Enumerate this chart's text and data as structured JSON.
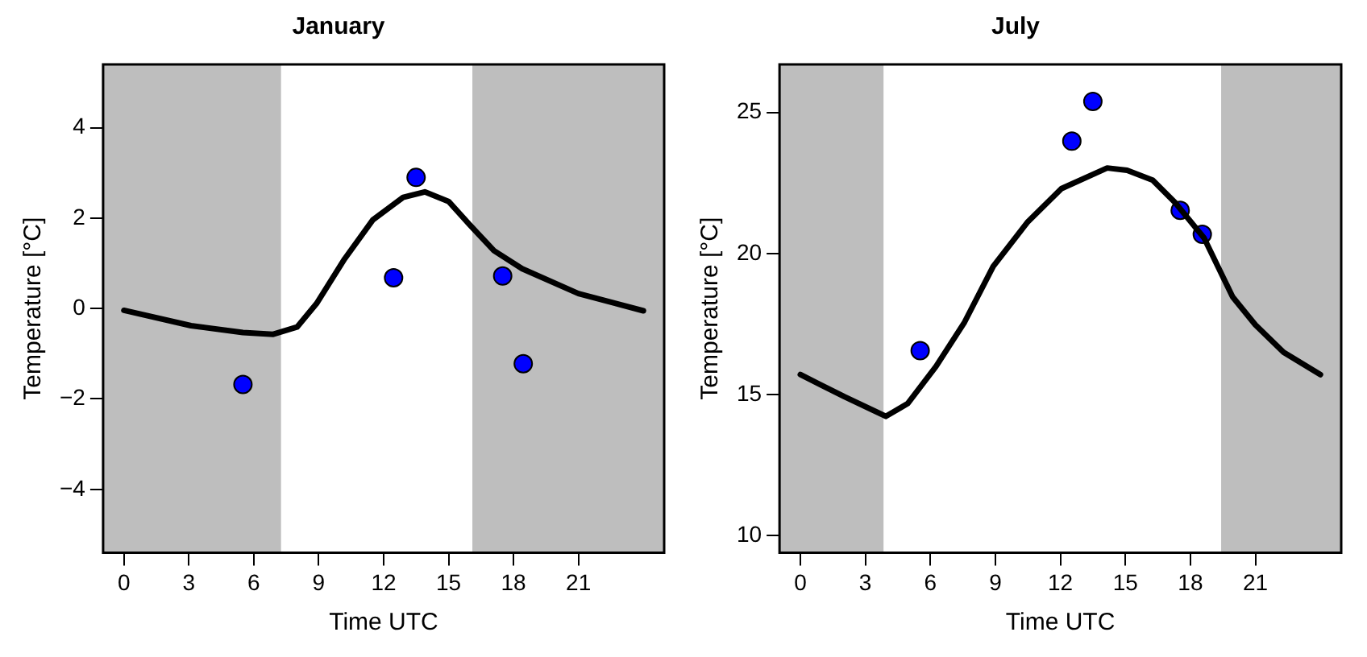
{
  "chart_data": [
    {
      "type": "line",
      "title": "January",
      "xlabel": "Time UTC",
      "ylabel": "Temperature [°C]",
      "xlim": [
        -0.96,
        24.96
      ],
      "xticks": [
        0,
        3,
        6,
        9,
        12,
        15,
        18,
        21
      ],
      "ylim": [
        -5.4,
        5.4
      ],
      "yticks": [
        -4,
        -2,
        0,
        2,
        4
      ],
      "bands": [
        {
          "axis": "x",
          "from": -0.96,
          "to": 7.26,
          "color": "#bebebe"
        },
        {
          "axis": "x",
          "from": 16.1,
          "to": 24.96,
          "color": "#bebebe"
        }
      ],
      "series": [
        {
          "color": "#000000",
          "marker": "none",
          "x": [
            0,
            3.1,
            5.5,
            6.9,
            8,
            8.9,
            10.2,
            11.5,
            12.9,
            13.9,
            15,
            16,
            17.1,
            18.4,
            21,
            24
          ],
          "values": [
            -0.04,
            -0.38,
            -0.53,
            -0.57,
            -0.41,
            0.11,
            1.1,
            1.96,
            2.46,
            2.58,
            2.37,
            1.84,
            1.28,
            0.88,
            0.33,
            -0.05
          ]
        },
        {
          "type": "scatter",
          "color": "#0000ff",
          "marker": "circle",
          "x": [
            5.5,
            12.46,
            13.5,
            17.5,
            18.45
          ],
          "values": [
            -1.68,
            0.68,
            2.9,
            0.72,
            -1.22
          ]
        }
      ]
    },
    {
      "type": "line",
      "title": "July",
      "xlabel": "Time UTC",
      "ylabel": "Temperature [°C]",
      "xlim": [
        -0.96,
        24.96
      ],
      "xticks": [
        0,
        3,
        6,
        9,
        12,
        15,
        18,
        21
      ],
      "ylim": [
        9.4,
        26.7
      ],
      "yticks": [
        10,
        15,
        20,
        25
      ],
      "bands": [
        {
          "axis": "x",
          "from": -0.96,
          "to": 3.84,
          "color": "#bebebe"
        },
        {
          "axis": "x",
          "from": 19.42,
          "to": 24.96,
          "color": "#bebebe"
        }
      ],
      "series": [
        {
          "color": "#000000",
          "marker": "none",
          "x": [
            0,
            2.05,
            3.95,
            4.95,
            6.26,
            7.58,
            8.9,
            10.47,
            12.05,
            14.16,
            15.08,
            16.26,
            17.3,
            18.63,
            19.95,
            21,
            22.3,
            24
          ],
          "values": [
            15.71,
            14.92,
            14.23,
            14.68,
            16.0,
            17.57,
            19.54,
            21.1,
            22.3,
            23.03,
            22.95,
            22.6,
            21.8,
            20.55,
            18.46,
            17.47,
            16.5,
            15.71
          ]
        },
        {
          "type": "scatter",
          "color": "#0000ff",
          "marker": "circle",
          "x": [
            5.53,
            12.53,
            13.5,
            17.53,
            18.55
          ],
          "values": [
            16.56,
            23.98,
            25.39,
            21.53,
            20.68
          ]
        }
      ]
    }
  ]
}
